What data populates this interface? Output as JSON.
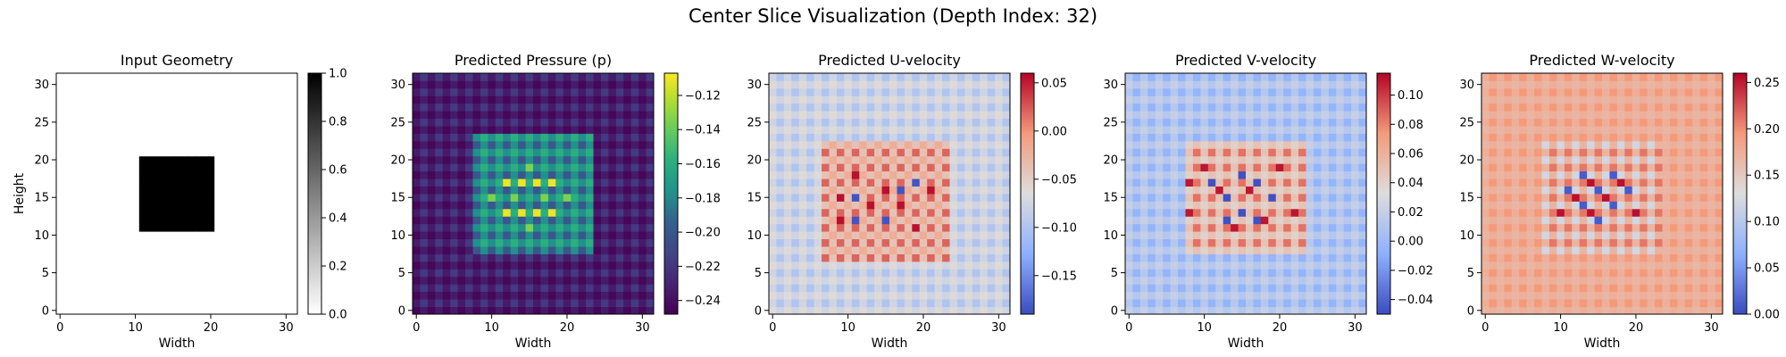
{
  "figure": {
    "title": "Center Slice Visualization (Depth Index: 32)"
  },
  "chart_data": [
    {
      "type": "heatmap",
      "title": "Input Geometry",
      "xlabel": "Width",
      "ylabel": "Height",
      "grid_size": 32,
      "colormap": "gray_r",
      "xticks": [
        0,
        10,
        20,
        30
      ],
      "yticks": [
        0,
        5,
        10,
        15,
        20,
        25,
        30
      ],
      "colorbar_range": [
        0.0,
        1.0
      ],
      "colorbar_ticks": [
        "0.0",
        "0.2",
        "0.4",
        "0.6",
        "0.8",
        "1.0"
      ],
      "field": {
        "pattern": "box",
        "background": 0.0,
        "box_value": 1.0,
        "box_x": [
          11,
          20
        ],
        "box_y": [
          11,
          20
        ]
      }
    },
    {
      "type": "heatmap",
      "title": "Predicted Pressure (p)",
      "xlabel": "Width",
      "ylabel": "",
      "grid_size": 32,
      "colormap": "viridis",
      "xticks": [
        0,
        10,
        20,
        30
      ],
      "yticks": [
        0,
        5,
        10,
        15,
        20,
        25,
        30
      ],
      "colorbar_range": [
        -0.248,
        -0.107
      ],
      "colorbar_ticks": [
        "−0.24",
        "−0.22",
        "−0.20",
        "−0.18",
        "−0.16",
        "−0.14",
        "−0.12"
      ],
      "field": {
        "pattern": "checker",
        "base": -0.235,
        "odd_odd": -0.218,
        "even_even": -0.245,
        "near_base": -0.178,
        "near_odd_odd": -0.158,
        "near_even_even": -0.2,
        "near_x": [
          8,
          23
        ],
        "near_y": [
          8,
          23
        ],
        "hot_value": -0.11,
        "hot_cells": [
          [
            12,
            13
          ],
          [
            14,
            13
          ],
          [
            16,
            13
          ],
          [
            18,
            13
          ],
          [
            12,
            17
          ],
          [
            14,
            17
          ],
          [
            16,
            17
          ],
          [
            18,
            17
          ]
        ],
        "warm_value": -0.135,
        "warm_cells": [
          [
            10,
            15
          ],
          [
            20,
            15
          ],
          [
            13,
            15
          ],
          [
            17,
            15
          ],
          [
            15,
            11
          ],
          [
            15,
            19
          ]
        ]
      }
    },
    {
      "type": "heatmap",
      "title": "Predicted U-velocity",
      "xlabel": "Width",
      "ylabel": "",
      "grid_size": 32,
      "colormap": "coolwarm",
      "xticks": [
        0,
        10,
        20,
        30
      ],
      "yticks": [
        0,
        5,
        10,
        15,
        20,
        25,
        30
      ],
      "colorbar_range": [
        -0.19,
        0.06
      ],
      "colorbar_ticks": [
        "−0.15",
        "−0.10",
        "−0.05",
        "0.00",
        "0.05"
      ],
      "field": {
        "pattern": "checker",
        "base": -0.077,
        "odd_odd": -0.1,
        "even_even": -0.062,
        "near_base": -0.04,
        "near_odd_odd": 0.02,
        "near_even_even": -0.02,
        "near_x": [
          7,
          23
        ],
        "near_y": [
          7,
          22
        ],
        "hot_value": 0.055,
        "hot_cells": [
          [
            9,
            15
          ],
          [
            13,
            14
          ],
          [
            15,
            16
          ],
          [
            17,
            14
          ],
          [
            11,
            18
          ],
          [
            19,
            11
          ],
          [
            21,
            16
          ],
          [
            9,
            12
          ]
        ],
        "cold_value": -0.185,
        "cold_cells": [
          [
            11,
            12
          ],
          [
            15,
            12
          ],
          [
            19,
            17
          ],
          [
            11,
            15
          ],
          [
            17,
            16
          ]
        ]
      }
    },
    {
      "type": "heatmap",
      "title": "Predicted V-velocity",
      "xlabel": "Width",
      "ylabel": "",
      "grid_size": 32,
      "colormap": "coolwarm",
      "xticks": [
        0,
        10,
        20,
        30
      ],
      "yticks": [
        0,
        5,
        10,
        15,
        20,
        25,
        30
      ],
      "colorbar_range": [
        -0.05,
        0.115
      ],
      "colorbar_ticks": [
        "−0.04",
        "−0.02",
        "0.00",
        "0.02",
        "0.04",
        "0.06",
        "0.08",
        "0.10"
      ],
      "field": {
        "pattern": "checker",
        "base": 0.012,
        "odd_odd": -0.005,
        "even_even": 0.02,
        "near_base": 0.05,
        "near_odd_odd": 0.085,
        "near_even_even": 0.04,
        "near_x": [
          8,
          23
        ],
        "near_y": [
          8,
          22
        ],
        "hot_value": 0.11,
        "hot_cells": [
          [
            8,
            17
          ],
          [
            8,
            13
          ],
          [
            10,
            19
          ],
          [
            12,
            16
          ],
          [
            16,
            16
          ],
          [
            20,
            19
          ],
          [
            22,
            13
          ],
          [
            18,
            12
          ],
          [
            14,
            11
          ]
        ],
        "cold_value": -0.048,
        "cold_cells": [
          [
            11,
            17
          ],
          [
            13,
            15
          ],
          [
            15,
            13
          ],
          [
            17,
            17
          ],
          [
            19,
            15
          ],
          [
            13,
            12
          ],
          [
            17,
            12
          ],
          [
            15,
            18
          ]
        ]
      }
    },
    {
      "type": "heatmap",
      "title": "Predicted W-velocity",
      "xlabel": "Width",
      "ylabel": "",
      "grid_size": 32,
      "colormap": "coolwarm",
      "xticks": [
        0,
        10,
        20,
        30
      ],
      "yticks": [
        0,
        5,
        10,
        15,
        20,
        25,
        30
      ],
      "colorbar_range": [
        0.0,
        0.26
      ],
      "colorbar_ticks": [
        "0.00",
        "0.05",
        "0.10",
        "0.15",
        "0.20",
        "0.25"
      ],
      "field": {
        "pattern": "checker",
        "base": 0.175,
        "odd_odd": 0.195,
        "even_even": 0.168,
        "near_base": 0.17,
        "near_odd_odd": 0.21,
        "near_even_even": 0.12,
        "near_x": [
          8,
          23
        ],
        "near_y": [
          8,
          22
        ],
        "hot_value": 0.255,
        "hot_cells": [
          [
            12,
            15
          ],
          [
            16,
            15
          ],
          [
            14,
            17
          ],
          [
            18,
            17
          ],
          [
            10,
            13
          ],
          [
            20,
            13
          ],
          [
            14,
            13
          ]
        ],
        "cold_value": 0.01,
        "cold_cells": [
          [
            11,
            16
          ],
          [
            13,
            14
          ],
          [
            15,
            16
          ],
          [
            17,
            14
          ],
          [
            19,
            16
          ],
          [
            15,
            12
          ],
          [
            13,
            18
          ],
          [
            17,
            18
          ]
        ]
      }
    }
  ]
}
